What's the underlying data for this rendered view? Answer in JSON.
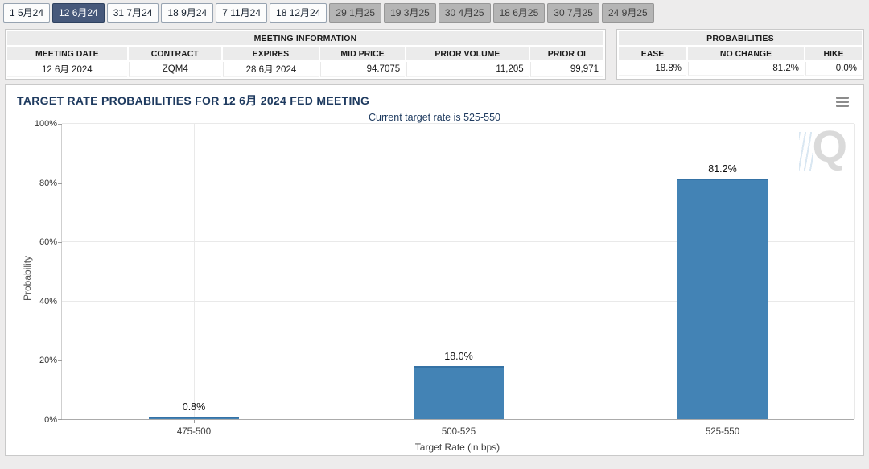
{
  "tabs": [
    {
      "label": "1 5月24",
      "state": "normal"
    },
    {
      "label": "12 6月24",
      "state": "selected"
    },
    {
      "label": "31 7月24",
      "state": "normal"
    },
    {
      "label": "18 9月24",
      "state": "normal"
    },
    {
      "label": "7 11月24",
      "state": "normal"
    },
    {
      "label": "18 12月24",
      "state": "normal"
    },
    {
      "label": "29 1月25",
      "state": "disabled"
    },
    {
      "label": "19 3月25",
      "state": "disabled"
    },
    {
      "label": "30 4月25",
      "state": "disabled"
    },
    {
      "label": "18 6月25",
      "state": "disabled"
    },
    {
      "label": "30 7月25",
      "state": "disabled"
    },
    {
      "label": "24 9月25",
      "state": "disabled"
    }
  ],
  "meeting_info": {
    "title": "MEETING INFORMATION",
    "columns": [
      "MEETING DATE",
      "CONTRACT",
      "EXPIRES",
      "MID PRICE",
      "PRIOR VOLUME",
      "PRIOR OI"
    ],
    "values": [
      "12 6月 2024",
      "ZQM4",
      "28 6月 2024",
      "94.7075",
      "11,205",
      "99,971"
    ]
  },
  "probabilities": {
    "title": "PROBABILITIES",
    "columns": [
      "EASE",
      "NO CHANGE",
      "HIKE"
    ],
    "values": [
      "18.8%",
      "81.2%",
      "0.0%"
    ]
  },
  "chart": {
    "watermark_letter": "Q"
  },
  "chart_data": {
    "type": "bar",
    "title": "TARGET RATE PROBABILITIES FOR 12 6月 2024 FED MEETING",
    "subtitle": "Current target rate is 525-550",
    "categories": [
      "475-500",
      "500-525",
      "525-550"
    ],
    "values": [
      0.8,
      18.0,
      81.2
    ],
    "value_labels": [
      "0.8%",
      "18.0%",
      "81.2%"
    ],
    "xlabel": "Target Rate (in bps)",
    "ylabel": "Probability",
    "ylim": [
      0,
      100
    ],
    "yticks": [
      "0%",
      "20%",
      "40%",
      "60%",
      "80%",
      "100%"
    ],
    "grid": true,
    "legend": false,
    "bar_color": "#4383b5"
  },
  "colors": {
    "bar": "#4383b5",
    "title_navy": "#1e3a5f",
    "selected_tab_bg": "#47597b",
    "disabled_tab_bg": "#b5b5b5",
    "panel_border": "#c9c9c9"
  }
}
